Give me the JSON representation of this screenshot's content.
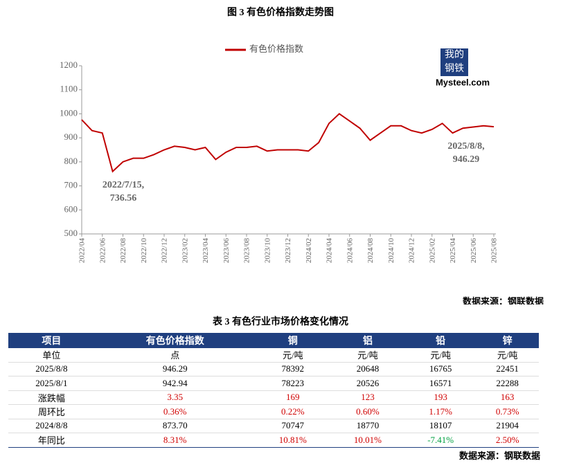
{
  "figure_title": "图 3  有色价格指数走势图",
  "chart_data": {
    "type": "line",
    "x": [
      "2022/04",
      "2022/05",
      "2022/06",
      "2022/07",
      "2022/08",
      "2022/09",
      "2022/10",
      "2022/11",
      "2022/12",
      "2023/01",
      "2023/02",
      "2023/03",
      "2023/04",
      "2023/05",
      "2023/06",
      "2023/07",
      "2023/08",
      "2023/09",
      "2023/10",
      "2023/11",
      "2023/12",
      "2024/01",
      "2024/02",
      "2024/03",
      "2024/04",
      "2024/05",
      "2024/06",
      "2024/07",
      "2024/08",
      "2024/09",
      "2024/10",
      "2024/11",
      "2024/12",
      "2025/01",
      "2025/02",
      "2025/03",
      "2025/04",
      "2025/05",
      "2025/06",
      "2025/07",
      "2025/08"
    ],
    "series": [
      {
        "name": "有色价格指数",
        "color": "#c00000",
        "values": [
          975,
          930,
          920,
          760,
          800,
          815,
          815,
          830,
          850,
          865,
          860,
          850,
          860,
          810,
          840,
          860,
          860,
          865,
          845,
          850,
          850,
          850,
          845,
          880,
          960,
          1000,
          970,
          940,
          890,
          920,
          950,
          950,
          930,
          920,
          935,
          960,
          920,
          940,
          945,
          950,
          946.29
        ]
      }
    ],
    "xticks": [
      "2022/04",
      "2022/06",
      "2022/08",
      "2022/10",
      "2022/12",
      "2023/02",
      "2023/04",
      "2023/06",
      "2023/08",
      "2023/10",
      "2023/12",
      "2024/02",
      "2024/04",
      "2024/06",
      "2024/08",
      "2024/10",
      "2024/12",
      "2025/02",
      "2025/04",
      "2025/06",
      "2025/08"
    ],
    "ylim": [
      500,
      1200
    ],
    "yticks": [
      500,
      600,
      700,
      800,
      900,
      1000,
      1100,
      1200
    ],
    "annotations": [
      {
        "lines": [
          "2022/7/15,",
          "736.56"
        ],
        "at": "2022/07"
      },
      {
        "lines": [
          "2025/8/8,",
          "946.29"
        ],
        "at": "2025/08"
      }
    ],
    "logo": [
      "我的",
      "钢铁",
      "Mysteel.com"
    ]
  },
  "source_1": "数据来源：钢联数据",
  "table_title": "表 3 有色行业市场价格变化情况",
  "table": {
    "header": [
      "项目",
      "有色价格指数",
      "铜",
      "铝",
      "铅",
      "锌"
    ],
    "rows": [
      [
        "单位",
        "点",
        "元/吨",
        "元/吨",
        "元/吨",
        "元/吨"
      ],
      [
        "2025/8/8",
        "946.29",
        "78392",
        "20648",
        "16765",
        "22451"
      ],
      [
        "2025/8/1",
        "942.94",
        "78223",
        "20526",
        "16571",
        "22288"
      ],
      [
        "涨跌幅",
        "3.35",
        "169",
        "123",
        "193",
        "163"
      ],
      [
        "周环比",
        "0.36%",
        "0.22%",
        "0.60%",
        "1.17%",
        "0.73%"
      ],
      [
        "2024/8/8",
        "873.70",
        "70747",
        "18770",
        "18107",
        "21904"
      ],
      [
        "年同比",
        "8.31%",
        "10.81%",
        "10.01%",
        "-7.41%",
        "2.50%"
      ]
    ],
    "colored_rows": [
      3,
      4,
      6
    ],
    "up_color": "#d00000",
    "down_color": "#00a040",
    "header_color": "#1f3f7f"
  },
  "source_2": "数据来源：钢联数据"
}
